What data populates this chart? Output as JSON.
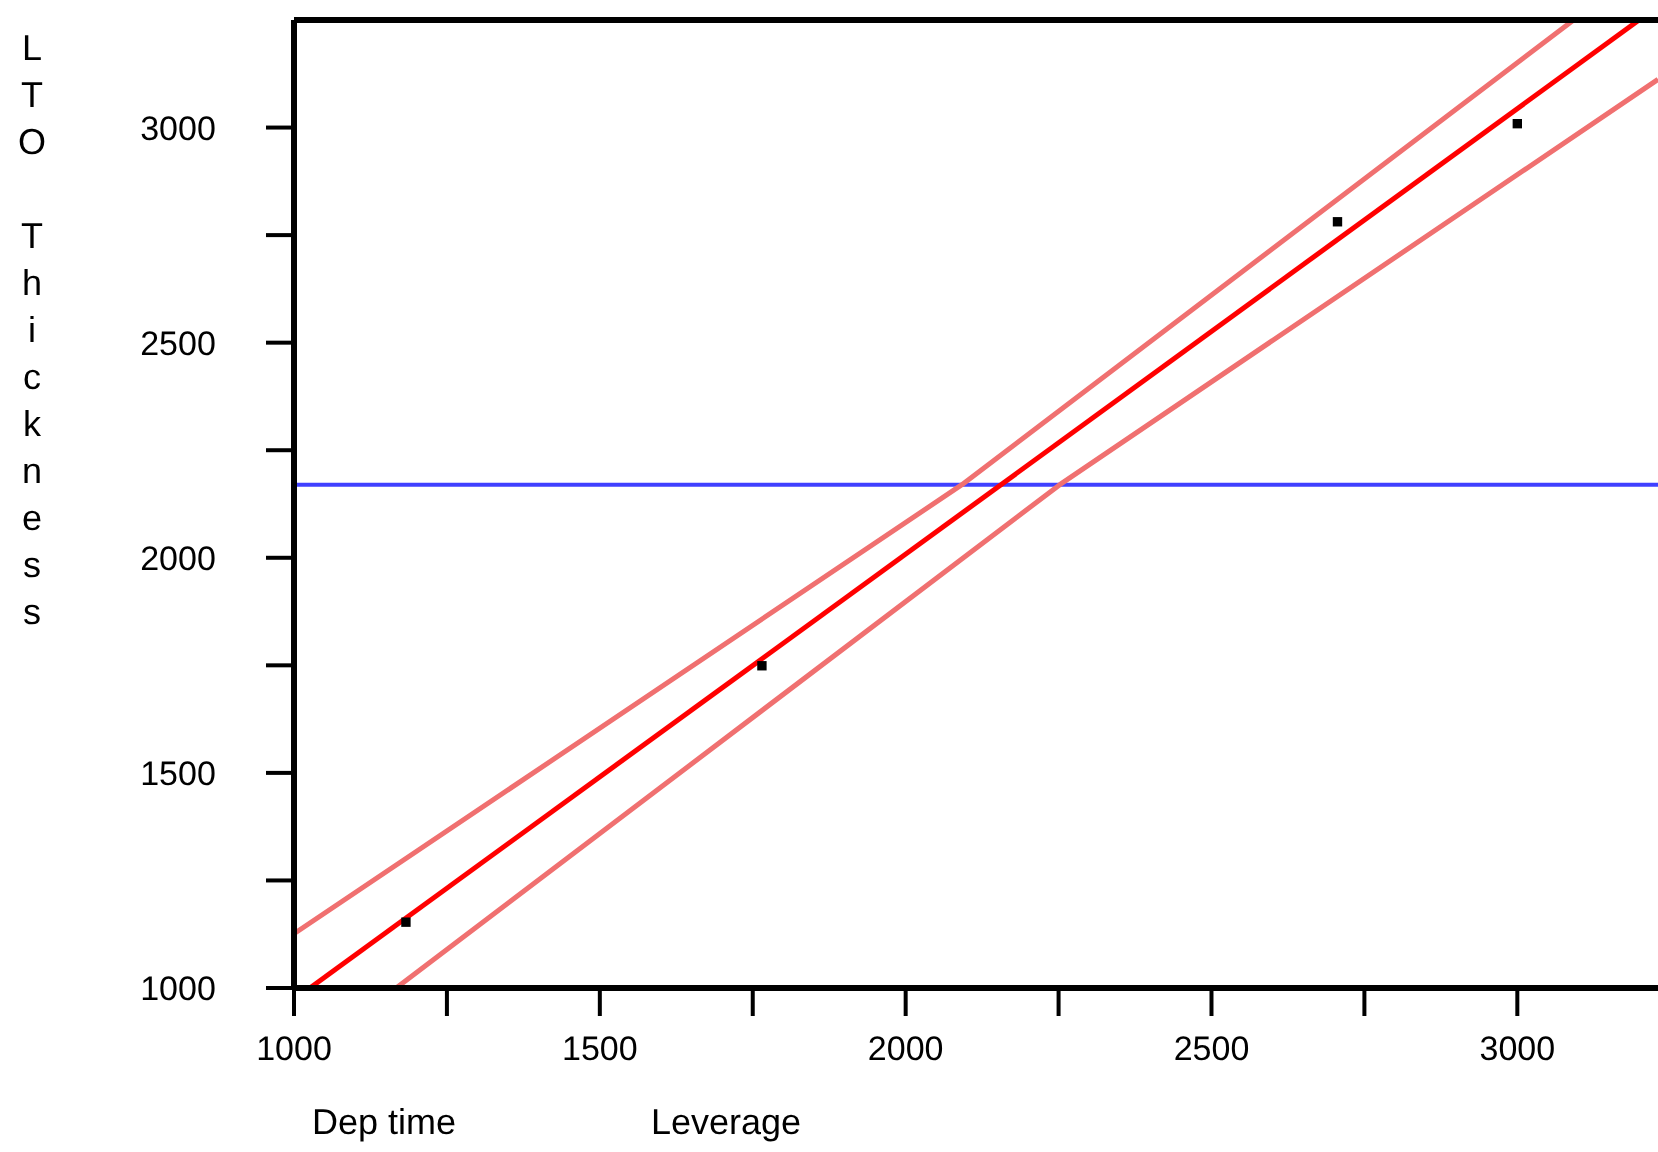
{
  "chart_data": {
    "type": "scatter",
    "xlabel": "Dep time",
    "ylabel": "LTO Thickness",
    "annotations": [
      "Leverage"
    ],
    "xlim": [
      1000,
      3230
    ],
    "ylim": [
      1000,
      3250
    ],
    "xticks": [
      1000,
      {
        "value": 1250,
        "label": null
      },
      1500,
      {
        "value": 1750,
        "label": null
      },
      2000,
      {
        "value": 2250,
        "label": null
      },
      2500,
      {
        "value": 2750,
        "label": null
      },
      3000
    ],
    "yticks": [
      1000,
      {
        "value": 1250,
        "label": null
      },
      1500,
      {
        "value": 1750,
        "label": null
      },
      2000,
      {
        "value": 2250,
        "label": null
      },
      2500,
      {
        "value": 2750,
        "label": null
      },
      3000
    ],
    "marker": "square",
    "grid": false,
    "series": [
      {
        "color": "#000000",
        "x": [
          1183,
          1765,
          2706,
          3000
        ],
        "values": [
          1153,
          1749,
          2781,
          3009
        ]
      },
      {
        "type": "line",
        "marker": "none",
        "color": "#ff0000",
        "line_style": "solid",
        "x": [
          1026,
          3199
        ],
        "values": [
          1000,
          3250
        ]
      },
      {
        "type": "line",
        "marker": "none",
        "color": "#f07070",
        "line_style": "solid",
        "x": [
          1000,
          2092,
          3092
        ],
        "values": [
          1126,
          2170,
          3250
        ]
      },
      {
        "type": "line",
        "marker": "none",
        "color": "#f07070",
        "line_style": "solid",
        "x": [
          1167,
          2252,
          3230
        ],
        "values": [
          1000,
          2170,
          3112
        ]
      }
    ],
    "ref_lines": [
      {
        "axis": "y",
        "value": 2170,
        "color": "#4040ff"
      }
    ]
  }
}
